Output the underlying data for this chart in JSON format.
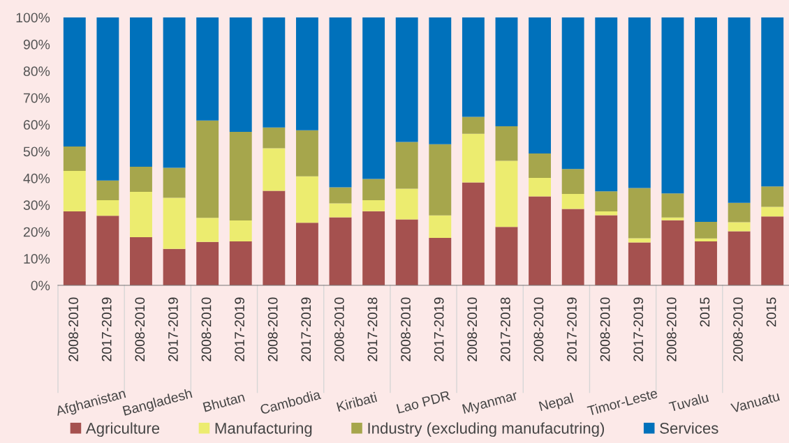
{
  "chart_data": {
    "type": "bar",
    "stacked": true,
    "categories": [
      "2008-2010",
      "2017-2019",
      "2008-2010",
      "2017-2019",
      "2008-2010",
      "2017-2019",
      "2008-2010",
      "2017-2019",
      "2008-2010",
      "2017-2018",
      "2008-2010",
      "2017-2019",
      "2008-2010",
      "2017-2018",
      "2008-2010",
      "2017-2019",
      "2008-2010",
      "2017-2019",
      "2008-2010",
      "2015",
      "2008-2010",
      "2015"
    ],
    "series": [
      {
        "name": "Agriculture",
        "color": "#a5514f",
        "values": [
          27.6,
          26.0,
          18.0,
          13.6,
          16.2,
          16.4,
          35.3,
          23.4,
          25.4,
          27.7,
          24.6,
          17.7,
          38.4,
          21.8,
          33.2,
          28.5,
          26.2,
          16.0,
          24.3,
          16.4,
          20.2,
          25.7
        ]
      },
      {
        "name": "Manufacturing",
        "color": "#ecec6f",
        "values": [
          15.1,
          5.8,
          16.9,
          19.1,
          9.0,
          7.8,
          15.9,
          17.3,
          5.2,
          4.1,
          11.5,
          8.4,
          18.2,
          24.7,
          6.9,
          5.6,
          1.4,
          1.6,
          1.0,
          1.1,
          3.4,
          3.6
        ]
      },
      {
        "name": "Industry (excluding manufacutring)",
        "color": "#a6a64c",
        "values": [
          9.1,
          7.3,
          9.4,
          11.2,
          36.3,
          33.1,
          7.7,
          17.2,
          6.0,
          7.9,
          17.4,
          26.6,
          6.3,
          12.9,
          9.1,
          9.3,
          7.5,
          18.7,
          9.0,
          6.2,
          7.2,
          7.6
        ]
      },
      {
        "name": "Services",
        "color": "#0071bb",
        "values": [
          48.2,
          60.9,
          55.7,
          56.1,
          38.5,
          42.7,
          41.1,
          42.1,
          63.4,
          60.3,
          46.5,
          47.3,
          37.1,
          40.6,
          50.8,
          56.6,
          64.9,
          63.7,
          65.7,
          76.3,
          69.2,
          63.1
        ]
      }
    ],
    "ylim": [
      0,
      100
    ],
    "yticks": [
      {
        "value": 0,
        "label": "0%"
      },
      {
        "value": 10,
        "label": "10%"
      },
      {
        "value": 20,
        "label": "20%"
      },
      {
        "value": 30,
        "label": "30%"
      },
      {
        "value": 40,
        "label": "40%"
      },
      {
        "value": 50,
        "label": "50%"
      },
      {
        "value": 60,
        "label": "60%"
      },
      {
        "value": 70,
        "label": "70%"
      },
      {
        "value": 80,
        "label": "80%"
      },
      {
        "value": 90,
        "label": "90%"
      },
      {
        "value": 100,
        "label": "100%"
      }
    ],
    "grid": false,
    "legend": "bottom",
    "annotations": [
      "Afghanistan",
      "Bangladesh",
      "Bhutan",
      "Cambodia",
      "Kiribati",
      "Lao PDR",
      "Myanmar",
      "Nepal",
      "Timor-Leste",
      "Tuvalu",
      "Vanuatu"
    ]
  }
}
